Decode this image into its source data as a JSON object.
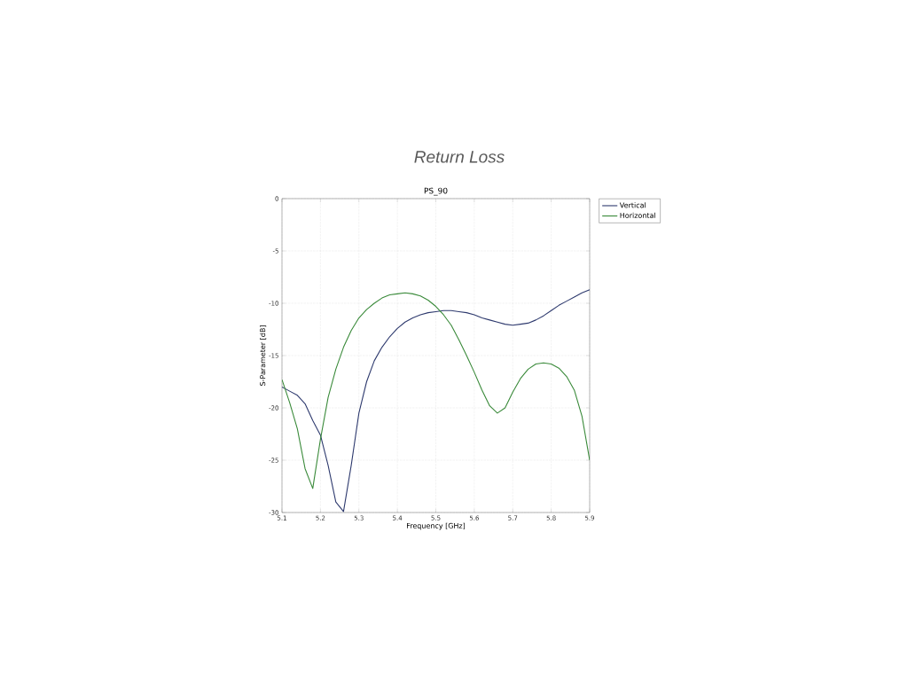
{
  "chart_data": {
    "type": "line",
    "title": "Return Loss",
    "subtitle": "PS_90",
    "xlabel": "Frequency [GHz]",
    "ylabel": "S-Parameter [dB]",
    "xlim": [
      5.1,
      5.9
    ],
    "ylim": [
      -30,
      0
    ],
    "xticks": [
      5.1,
      5.2,
      5.3,
      5.4,
      5.5,
      5.6,
      5.7,
      5.8,
      5.9
    ],
    "yticks": [
      -30,
      -25,
      -20,
      -15,
      -10,
      -5,
      0
    ],
    "grid": true,
    "legend": "top right",
    "line_style": "solid",
    "marker": "none",
    "x": [
      5.1,
      5.12,
      5.14,
      5.16,
      5.18,
      5.2,
      5.22,
      5.24,
      5.26,
      5.28,
      5.3,
      5.32,
      5.34,
      5.36,
      5.38,
      5.4,
      5.42,
      5.44,
      5.46,
      5.48,
      5.5,
      5.52,
      5.54,
      5.56,
      5.58,
      5.6,
      5.62,
      5.64,
      5.66,
      5.68,
      5.7,
      5.72,
      5.74,
      5.76,
      5.78,
      5.8,
      5.82,
      5.84,
      5.86,
      5.88,
      5.9
    ],
    "series": [
      {
        "name": "Vertical",
        "color": "#2e3a6e",
        "values": [
          -18.0,
          -18.4,
          -18.8,
          -19.6,
          -21.2,
          -22.6,
          -25.5,
          -29.0,
          -29.9,
          -25.5,
          -20.5,
          -17.5,
          -15.5,
          -14.2,
          -13.2,
          -12.4,
          -11.8,
          -11.4,
          -11.1,
          -10.9,
          -10.8,
          -10.7,
          -10.7,
          -10.8,
          -10.9,
          -11.1,
          -11.4,
          -11.6,
          -11.8,
          -12.0,
          -12.1,
          -12.0,
          -11.9,
          -11.6,
          -11.2,
          -10.7,
          -10.2,
          -9.8,
          -9.4,
          -9.0,
          -8.7
        ]
      },
      {
        "name": "Horizontal",
        "color": "#3a8a3a",
        "values": [
          -17.3,
          -19.5,
          -22.0,
          -25.8,
          -27.7,
          -23.0,
          -19.0,
          -16.3,
          -14.2,
          -12.6,
          -11.4,
          -10.6,
          -10.0,
          -9.5,
          -9.2,
          -9.1,
          -9.0,
          -9.1,
          -9.3,
          -9.7,
          -10.3,
          -11.1,
          -12.1,
          -13.5,
          -15.0,
          -16.6,
          -18.3,
          -19.8,
          -20.5,
          -20.0,
          -18.5,
          -17.2,
          -16.3,
          -15.8,
          -15.7,
          -15.8,
          -16.2,
          -17.0,
          -18.3,
          -20.8,
          -25.0
        ]
      }
    ]
  }
}
